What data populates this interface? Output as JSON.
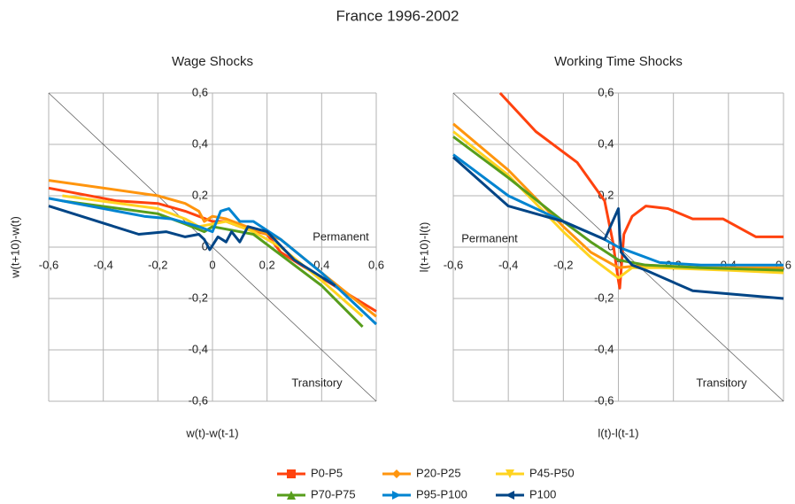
{
  "title": "France 1996-2002",
  "chart_data": [
    {
      "type": "line",
      "title": "Wage Shocks",
      "xlabel": "w(t)-w(t-1)",
      "ylabel": "w(t+10)-w(t)",
      "annotations": [
        "Permanent",
        "Transitory"
      ],
      "grid": true,
      "xlim": [
        -0.6,
        0.6
      ],
      "ylim": [
        -0.6,
        0.6
      ],
      "xticks": [
        {
          "value": -0.6,
          "label": "-0,6"
        },
        {
          "value": -0.4,
          "label": "-0,4"
        },
        {
          "value": -0.2,
          "label": "-0,2"
        },
        0,
        {
          "value": 0.2,
          "label": "0,2"
        },
        {
          "value": 0.4,
          "label": "0,4"
        },
        {
          "value": 0.6,
          "label": "0,6"
        }
      ],
      "yticks": [
        {
          "value": -0.6,
          "label": "-0,6"
        },
        {
          "value": -0.4,
          "label": "-0,4"
        },
        {
          "value": -0.2,
          "label": "-0,2"
        },
        0,
        {
          "value": 0.2,
          "label": "0,2"
        },
        {
          "value": 0.4,
          "label": "0,4"
        },
        {
          "value": 0.6,
          "label": "0,6"
        }
      ],
      "series": [
        {
          "name": "P0-P5",
          "color": "#ff420e",
          "x": [
            -0.6,
            -0.35,
            -0.2,
            -0.1,
            -0.05,
            0,
            0.05,
            0.1,
            0.2,
            0.25,
            0.4,
            0.6
          ],
          "values": [
            0.23,
            0.18,
            0.17,
            0.14,
            0.12,
            0.1,
            0.1,
            0.08,
            0.05,
            -0.02,
            -0.12,
            -0.25
          ]
        },
        {
          "name": "P20-P25",
          "color": "#ff950e",
          "x": [
            -0.6,
            -0.2,
            -0.1,
            -0.05,
            -0.03,
            0,
            0.05,
            0.15,
            0.25,
            0.4,
            0.6
          ],
          "values": [
            0.26,
            0.2,
            0.17,
            0.14,
            0.1,
            0.12,
            0.11,
            0.07,
            0.03,
            -0.1,
            -0.27
          ]
        },
        {
          "name": "P45-P50",
          "color": "#ffd320",
          "x": [
            -0.55,
            -0.2,
            -0.1,
            -0.05,
            0,
            0.05,
            0.15,
            0.25,
            0.4,
            0.55
          ],
          "values": [
            0.2,
            0.15,
            0.11,
            0.08,
            0.09,
            0.1,
            0.06,
            0.0,
            -0.13,
            -0.27
          ]
        },
        {
          "name": "P70-P75",
          "color": "#579d1c",
          "x": [
            -0.55,
            -0.2,
            -0.1,
            -0.03,
            0,
            0.05,
            0.15,
            0.25,
            0.4,
            0.55
          ],
          "values": [
            0.18,
            0.13,
            0.09,
            0.06,
            0.08,
            0.07,
            0.05,
            -0.03,
            -0.15,
            -0.31
          ]
        },
        {
          "name": "P95-P100",
          "color": "#0084d1",
          "x": [
            -0.6,
            -0.25,
            -0.15,
            -0.05,
            0,
            0.03,
            0.06,
            0.1,
            0.15,
            0.25,
            0.4,
            0.6
          ],
          "values": [
            0.19,
            0.12,
            0.11,
            0.08,
            0.06,
            0.14,
            0.15,
            0.1,
            0.1,
            0.03,
            -0.1,
            -0.3
          ]
        },
        {
          "name": "P100",
          "color": "#004586",
          "x": [
            -0.6,
            -0.45,
            -0.27,
            -0.17,
            -0.1,
            -0.05,
            -0.03,
            -0.01,
            0.02,
            0.05,
            0.07,
            0.1,
            0.13,
            0.2,
            0.3,
            0.45
          ],
          "values": [
            0.16,
            0.11,
            0.05,
            0.06,
            0.04,
            0.05,
            0.03,
            -0.01,
            0.04,
            0.02,
            0.06,
            0.02,
            0.08,
            0.06,
            -0.05,
            -0.15
          ]
        }
      ]
    },
    {
      "type": "line",
      "title": "Working Time Shocks",
      "xlabel": "l(t)-l(t-1)",
      "ylabel": "l(t+10)-l(t)",
      "annotations": [
        "Permanent",
        "Transitory"
      ],
      "grid": true,
      "xlim": [
        -0.6,
        0.6
      ],
      "ylim": [
        -0.6,
        0.6
      ],
      "xticks": [
        {
          "value": -0.6,
          "label": "-0,6"
        },
        {
          "value": -0.4,
          "label": "-0,4"
        },
        {
          "value": -0.2,
          "label": "-0,2"
        },
        0,
        {
          "value": 0.2,
          "label": "0,2"
        },
        {
          "value": 0.4,
          "label": "0,4"
        },
        {
          "value": 0.6,
          "label": "0,6"
        }
      ],
      "yticks": [
        {
          "value": -0.6,
          "label": "-0,6"
        },
        {
          "value": -0.4,
          "label": "-0,4"
        },
        {
          "value": -0.2,
          "label": "-0,2"
        },
        0,
        {
          "value": 0.2,
          "label": "0,2"
        },
        {
          "value": 0.4,
          "label": "0,4"
        },
        {
          "value": 0.6,
          "label": "0,6"
        }
      ],
      "series": [
        {
          "color": "#ff420e",
          "x": [
            -0.43,
            -0.3,
            -0.15,
            -0.05,
            -0.02,
            0,
            0.005,
            0.02,
            0.05,
            0.1,
            0.18,
            0.27,
            0.38,
            0.5,
            0.6
          ],
          "values": [
            0.6,
            0.45,
            0.33,
            0.18,
            0.02,
            -0.13,
            -0.16,
            0.05,
            0.12,
            0.16,
            0.15,
            0.11,
            0.11,
            0.04,
            0.04
          ]
        },
        {
          "color": "#ff950e",
          "x": [
            -0.6,
            -0.4,
            -0.2,
            -0.1,
            0,
            0.1,
            0.3,
            0.6
          ],
          "values": [
            0.48,
            0.3,
            0.08,
            -0.02,
            -0.08,
            -0.07,
            -0.08,
            -0.08
          ]
        },
        {
          "color": "#ffd320",
          "x": [
            -0.6,
            -0.4,
            -0.2,
            -0.1,
            0,
            0.05,
            0.15,
            0.4,
            0.6
          ],
          "values": [
            0.45,
            0.28,
            0.06,
            -0.04,
            -0.12,
            -0.08,
            -0.08,
            -0.09,
            -0.1
          ]
        },
        {
          "color": "#579d1c",
          "x": [
            -0.6,
            -0.4,
            -0.2,
            -0.1,
            0,
            0.1,
            0.3,
            0.6
          ],
          "values": [
            0.43,
            0.27,
            0.1,
            0.02,
            -0.05,
            -0.07,
            -0.08,
            -0.09
          ]
        },
        {
          "color": "#0084d1",
          "x": [
            -0.6,
            -0.4,
            -0.2,
            -0.05,
            0,
            0.05,
            0.15,
            0.3,
            0.6
          ],
          "values": [
            0.36,
            0.2,
            0.1,
            0.03,
            0.0,
            -0.02,
            -0.06,
            -0.07,
            -0.07
          ]
        },
        {
          "color": "#004586",
          "x": [
            -0.6,
            -0.4,
            -0.2,
            -0.05,
            0,
            0.005,
            0.01,
            0.05,
            0.1,
            0.27,
            0.6
          ],
          "values": [
            0.35,
            0.16,
            0.1,
            0.03,
            0.15,
            0.05,
            -0.02,
            -0.07,
            -0.09,
            -0.17,
            -0.2
          ]
        }
      ]
    }
  ]
}
